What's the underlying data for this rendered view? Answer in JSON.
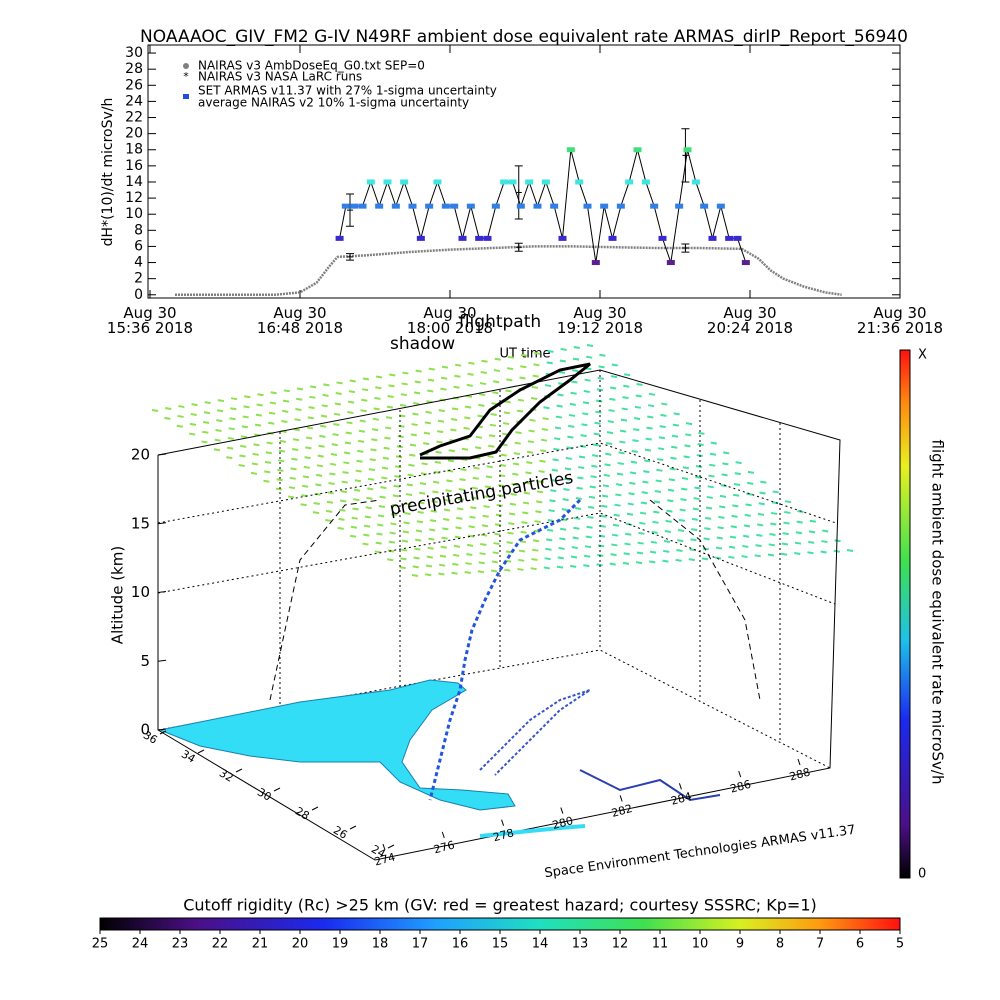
{
  "chart_data": [
    {
      "type": "line",
      "title": "NOAAAOC_GIV_FM2 G-IV   N49RF  ambient dose equivalent rate ARMAS_dirIP_Report_56940",
      "y_label": "dH*(10)/dt microSv/h",
      "x_label": "UT time",
      "legend_note": "average NAIRAS v2 10% 1-sigma uncertainty",
      "xlim": [
        "2018-08-30 15:36",
        "2018-08-30 21:36"
      ],
      "xticks": [
        {
          "value": "2018-08-30 15:36",
          "label": "Aug 30\n15:36 2018"
        },
        {
          "value": "2018-08-30 16:48",
          "label": "Aug 30\n16:48 2018"
        },
        {
          "value": "2018-08-30 18:00",
          "label": "Aug 30\n18:00 2018"
        },
        {
          "value": "2018-08-30 19:12",
          "label": "Aug 30\n19:12 2018"
        },
        {
          "value": "2018-08-30 20:24",
          "label": "Aug 30\n20:24 2018"
        },
        {
          "value": "2018-08-30 21:36",
          "label": "Aug 30\n21:36 2018"
        }
      ],
      "ylim": [
        -0.4,
        31
      ],
      "yticks": [
        0,
        2,
        4,
        6,
        8,
        10,
        12,
        14,
        16,
        18,
        20,
        22,
        24,
        26,
        28,
        30
      ],
      "series": [
        {
          "name": "NAIRAS v3 AmbDoseEq_G0.txt SEP=0",
          "kind": "line",
          "color": "#808080",
          "x": [
            "2018-08-30 15:48",
            "2018-08-30 16:00",
            "2018-08-30 16:12",
            "2018-08-30 16:24",
            "2018-08-30 16:36",
            "2018-08-30 16:48",
            "2018-08-30 16:56",
            "2018-08-30 17:02",
            "2018-08-30 17:06",
            "2018-08-30 17:20",
            "2018-08-30 17:40",
            "2018-08-30 18:00",
            "2018-08-30 18:20",
            "2018-08-30 18:40",
            "2018-08-30 19:00",
            "2018-08-30 19:20",
            "2018-08-30 19:40",
            "2018-08-30 20:00",
            "2018-08-30 20:20",
            "2018-08-30 20:28",
            "2018-08-30 20:34",
            "2018-08-30 20:40",
            "2018-08-30 20:50",
            "2018-08-30 21:00",
            "2018-08-30 21:08"
          ],
          "values": [
            0,
            0,
            0,
            0,
            0,
            0.3,
            1.5,
            3.5,
            4.7,
            4.9,
            5.3,
            5.6,
            5.8,
            6,
            6,
            5.9,
            5.8,
            5.8,
            5.7,
            4.5,
            3,
            2,
            1,
            0.3,
            0
          ]
        },
        {
          "name": "NAIRAS v3 NASA LaRC runs",
          "kind": "errorbar",
          "color": "#000000",
          "x": [
            "2018-08-30 17:12",
            "2018-08-30 17:12",
            "2018-08-30 18:33",
            "2018-08-30 18:33",
            "2018-08-30 19:53",
            "2018-08-30 19:53"
          ],
          "values": [
            10.5,
            4.7,
            12.7,
            5.9,
            17.3,
            5.8
          ],
          "errors": [
            2,
            0.4,
            3.3,
            0.5,
            3.3,
            0.5
          ]
        },
        {
          "name": "SET ARMAS v11.37 with 27% 1-sigma uncertainty",
          "kind": "markers",
          "color": "#1f4fd8",
          "line_color": "#000000",
          "x": [
            "2018-08-30 17:07",
            "2018-08-30 17:10",
            "2018-08-30 17:14",
            "2018-08-30 17:18",
            "2018-08-30 17:22",
            "2018-08-30 17:26",
            "2018-08-30 17:30",
            "2018-08-30 17:34",
            "2018-08-30 17:38",
            "2018-08-30 17:42",
            "2018-08-30 17:46",
            "2018-08-30 17:50",
            "2018-08-30 17:54",
            "2018-08-30 17:58",
            "2018-08-30 18:02",
            "2018-08-30 18:06",
            "2018-08-30 18:10",
            "2018-08-30 18:14",
            "2018-08-30 18:18",
            "2018-08-30 18:22",
            "2018-08-30 18:26",
            "2018-08-30 18:30",
            "2018-08-30 18:34",
            "2018-08-30 18:38",
            "2018-08-30 18:42",
            "2018-08-30 18:46",
            "2018-08-30 18:50",
            "2018-08-30 18:54",
            "2018-08-30 18:58",
            "2018-08-30 19:02",
            "2018-08-30 19:06",
            "2018-08-30 19:10",
            "2018-08-30 19:14",
            "2018-08-30 19:18",
            "2018-08-30 19:22",
            "2018-08-30 19:26",
            "2018-08-30 19:30",
            "2018-08-30 19:34",
            "2018-08-30 19:38",
            "2018-08-30 19:42",
            "2018-08-30 19:46",
            "2018-08-30 19:50",
            "2018-08-30 19:54",
            "2018-08-30 19:58",
            "2018-08-30 20:02",
            "2018-08-30 20:06",
            "2018-08-30 20:10",
            "2018-08-30 20:14",
            "2018-08-30 20:18",
            "2018-08-30 20:22"
          ],
          "values": [
            7,
            11,
            11,
            11,
            14,
            11,
            14,
            11,
            14,
            11,
            7,
            11,
            14,
            11,
            11,
            7,
            11,
            7,
            7,
            11,
            14,
            14,
            11,
            14,
            11,
            14,
            11,
            7,
            18,
            14,
            11,
            4,
            11,
            7,
            11,
            14,
            18,
            14,
            11,
            7,
            4,
            11,
            18,
            14,
            11,
            7,
            11,
            7,
            7,
            4
          ],
          "colors": [
            "#3a28d0",
            "#2f7fe6",
            "#2f7fe6",
            "#2f7fe6",
            "#3ee6e0",
            "#2f7fe6",
            "#3ee6e0",
            "#2f7fe6",
            "#3ee6e0",
            "#2f7fe6",
            "#3a28d0",
            "#2f7fe6",
            "#3ee6e0",
            "#2f7fe6",
            "#2f7fe6",
            "#3a28d0",
            "#2f7fe6",
            "#3a28d0",
            "#3a28d0",
            "#2f7fe6",
            "#3ee6e0",
            "#3ee6e0",
            "#2f7fe6",
            "#3ee6e0",
            "#2f7fe6",
            "#3ee6e0",
            "#2f7fe6",
            "#3a28d0",
            "#3fe07a",
            "#3ee6e0",
            "#2f7fe6",
            "#5b1f8f",
            "#2f7fe6",
            "#3a28d0",
            "#2f7fe6",
            "#3ee6e0",
            "#3fe07a",
            "#3ee6e0",
            "#2f7fe6",
            "#3a28d0",
            "#5b1f8f",
            "#2f7fe6",
            "#3fe07a",
            "#3ee6e0",
            "#2f7fe6",
            "#3a28d0",
            "#2f7fe6",
            "#3a28d0",
            "#3a28d0",
            "#5b1f8f"
          ]
        }
      ]
    },
    {
      "type": "surface3d",
      "annotations": [
        "flightpath",
        "shadow",
        "precipitating particles"
      ],
      "z_label": "Altitude (km)",
      "zlim": [
        0,
        20
      ],
      "zticks": [
        0,
        5,
        10,
        15,
        20
      ],
      "latlim": [
        24,
        36
      ],
      "latticks": [
        36,
        34,
        32,
        30,
        28,
        26,
        24
      ],
      "lonlim": [
        274,
        288
      ],
      "lonticks": [
        274,
        276,
        278,
        280,
        282,
        284,
        286,
        288
      ],
      "credit": "Space Environment Technologies ARMAS v11.37",
      "colorbar_label": "flight ambient dose equivalent rate microSv/h",
      "colorbar_top_label": "X",
      "colorbar_bottom_label": "0"
    },
    {
      "type": "colorbar",
      "title": "Cutoff rigidity (Rc) >25 km (GV: red = greatest hazard; courtesy SSSRC; Kp=1)",
      "clim": [
        25,
        5
      ],
      "cticks": [
        25,
        24,
        23,
        22,
        21,
        20,
        19,
        18,
        17,
        16,
        15,
        14,
        13,
        12,
        11,
        10,
        9,
        8,
        7,
        6,
        5
      ]
    }
  ]
}
